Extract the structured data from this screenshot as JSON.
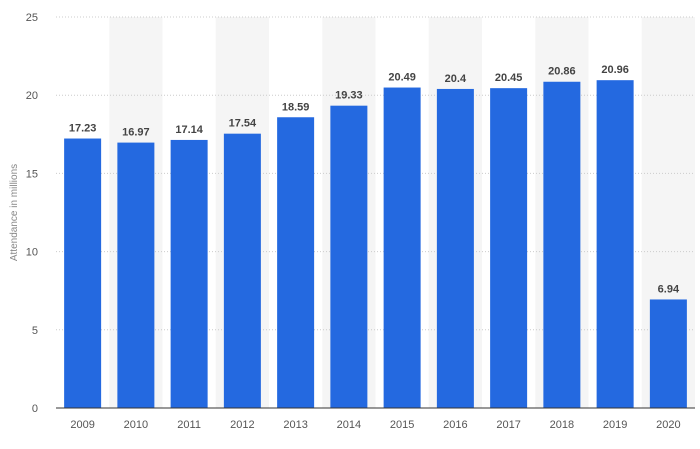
{
  "chart_data": {
    "type": "bar",
    "categories": [
      "2009",
      "2010",
      "2011",
      "2012",
      "2013",
      "2014",
      "2015",
      "2016",
      "2017",
      "2018",
      "2019",
      "2020"
    ],
    "values": [
      17.23,
      16.97,
      17.14,
      17.54,
      18.59,
      19.33,
      20.49,
      20.4,
      20.45,
      20.86,
      20.96,
      6.94
    ],
    "value_labels": [
      "17.23",
      "16.97",
      "17.14",
      "17.54",
      "18.59",
      "19.33",
      "20.49",
      "20.4",
      "20.45",
      "20.86",
      "20.96",
      "6.94"
    ],
    "xlabel": "",
    "ylabel": "Attendance in millions",
    "ylim": [
      0,
      25
    ],
    "yticks": [
      "0",
      "5",
      "10",
      "15",
      "20",
      "25"
    ],
    "ytick_values": [
      0,
      5,
      10,
      15,
      20,
      25
    ],
    "grid": true,
    "legend": "none",
    "colors": {
      "bar": "#2469e0",
      "band": "#f5f5f5",
      "grid": "#cccccc",
      "baseline": "#333333"
    }
  }
}
